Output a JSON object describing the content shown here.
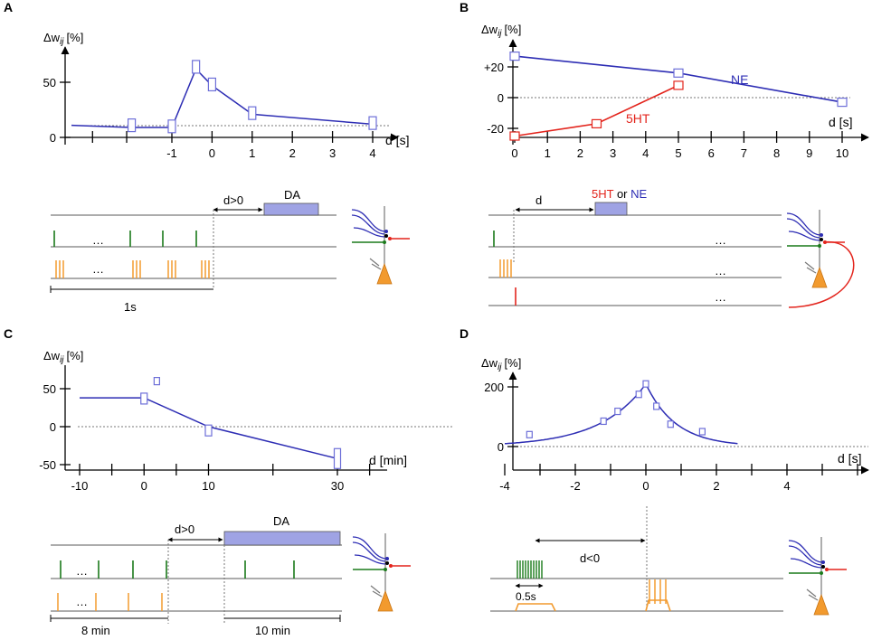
{
  "panels": {
    "A": {
      "label": "A",
      "ylabel": "Δw",
      "ylabel_sub": "ij",
      "ylabel_unit": "[%]",
      "xlabel": "d [s]",
      "box": "DA",
      "delay": "d>0",
      "ellipsis": "…",
      "duration": "1s"
    },
    "B": {
      "label": "B",
      "ylabel": "Δw",
      "ylabel_sub": "ij",
      "ylabel_unit": "[%]",
      "xlabel": "d [s]",
      "box_a": "5HT",
      "box_or": " or ",
      "box_b": "NE",
      "delay": "d",
      "ellipsis": "…"
    },
    "C": {
      "label": "C",
      "ylabel": "Δw",
      "ylabel_sub": "ij",
      "ylabel_unit": "[%]",
      "xlabel": "d [min]",
      "box": "DA",
      "delay": "d>0",
      "ellipsis": "…",
      "duration_a": "8 min",
      "duration_b": "10 min"
    },
    "D": {
      "label": "D",
      "ylabel": "Δw",
      "ylabel_sub": "ij",
      "ylabel_unit": "[%]",
      "xlabel": "d [s]",
      "delay": "d<0",
      "duration": "0.5s"
    }
  },
  "colors": {
    "blue": "#2d2db4",
    "red": "#e3241c",
    "green": "#1a7a1a",
    "orange": "#f29a2e",
    "box": "#9fa3e4"
  },
  "chart_data": [
    {
      "panel": "A",
      "type": "line",
      "title": "",
      "xlabel": "d [s]",
      "ylabel": "Δwij [%]",
      "x": [
        -3.5,
        -2,
        -1,
        -0.4,
        0,
        1,
        4
      ],
      "values": [
        11,
        9,
        9,
        62,
        47,
        21,
        12
      ],
      "markers_x": [
        -2,
        -1,
        -0.4,
        0,
        1,
        4
      ],
      "markers_y": [
        11,
        10,
        64,
        48,
        22,
        13
      ],
      "baseline": 13,
      "xticks": [
        -1,
        0,
        1,
        2,
        3,
        4
      ],
      "yticks": [
        0,
        50
      ],
      "xlim": [
        -3.5,
        4.5
      ],
      "ylim": [
        0,
        75
      ]
    },
    {
      "panel": "B",
      "type": "line",
      "title": "",
      "xlabel": "d [s]",
      "ylabel": "Δwij [%]",
      "series": [
        {
          "name": "NE",
          "color": "#2d2db4",
          "x": [
            0,
            5,
            10
          ],
          "values": [
            27,
            16,
            -3
          ]
        },
        {
          "name": "5HT",
          "color": "#e3241c",
          "x": [
            0,
            2.5,
            5
          ],
          "values": [
            -25,
            -17,
            8
          ]
        }
      ],
      "baseline": 0,
      "xticks": [
        0,
        1,
        2,
        3,
        4,
        5,
        6,
        7,
        8,
        9,
        10
      ],
      "yticks": [
        -20,
        0,
        20
      ],
      "ytick_labels": [
        "-20",
        "0",
        "+20"
      ],
      "xlim": [
        -0.5,
        11
      ],
      "ylim": [
        -28,
        35
      ]
    },
    {
      "panel": "C",
      "type": "line",
      "title": "",
      "xlabel": "d [min]",
      "ylabel": "Δwij [%]",
      "x": [
        -10,
        0,
        10,
        30
      ],
      "values": [
        38,
        38,
        0,
        -42
      ],
      "markers_x": [
        0,
        1,
        10,
        30
      ],
      "markers_y": [
        37,
        60,
        -5,
        -42
      ],
      "baseline": 0,
      "xticks": [
        -10,
        0,
        10,
        30
      ],
      "yticks": [
        -50,
        0,
        50
      ],
      "xlim": [
        -11,
        37
      ],
      "ylim": [
        -55,
        70
      ]
    },
    {
      "panel": "D",
      "type": "line",
      "title": "",
      "xlabel": "d [s]",
      "ylabel": "Δwij [%]",
      "markers_x": [
        -3.3,
        -1.2,
        -0.8,
        -0.2,
        0,
        0.3,
        0.7,
        1.6
      ],
      "markers_y": [
        40,
        85,
        118,
        175,
        210,
        135,
        75,
        50
      ],
      "curve": {
        "peak": 210,
        "tau_left": 1.3,
        "tau_right": 0.85,
        "x_from": -4,
        "x_to": 2.6
      },
      "baseline": 0,
      "xticks": [
        -4,
        -2,
        0,
        2,
        4
      ],
      "yticks": [
        0,
        200
      ],
      "xlim": [
        -4.2,
        6.5
      ],
      "ylim": [
        -20,
        250
      ]
    }
  ]
}
